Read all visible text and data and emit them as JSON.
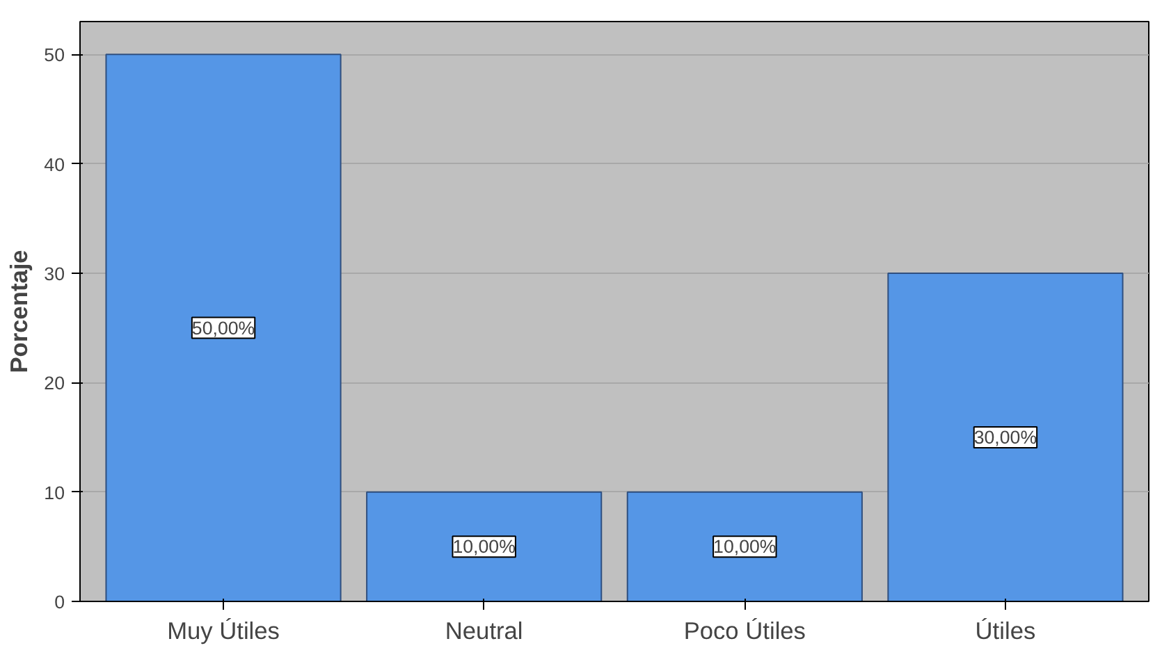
{
  "chart_data": {
    "type": "bar",
    "ylabel": "Porcentaje",
    "categories": [
      "Muy Útiles",
      "Neutral",
      "Poco Útiles",
      "Útiles"
    ],
    "values": [
      50,
      10,
      10,
      30
    ],
    "color": "#5596e6",
    "value_labels": [
      "50,00%",
      "10,00%",
      "10,00%",
      "30,00%"
    ],
    "ylim": [
      0,
      53
    ],
    "yticks": [
      0,
      10,
      20,
      30,
      40,
      50
    ],
    "grid": "y"
  }
}
